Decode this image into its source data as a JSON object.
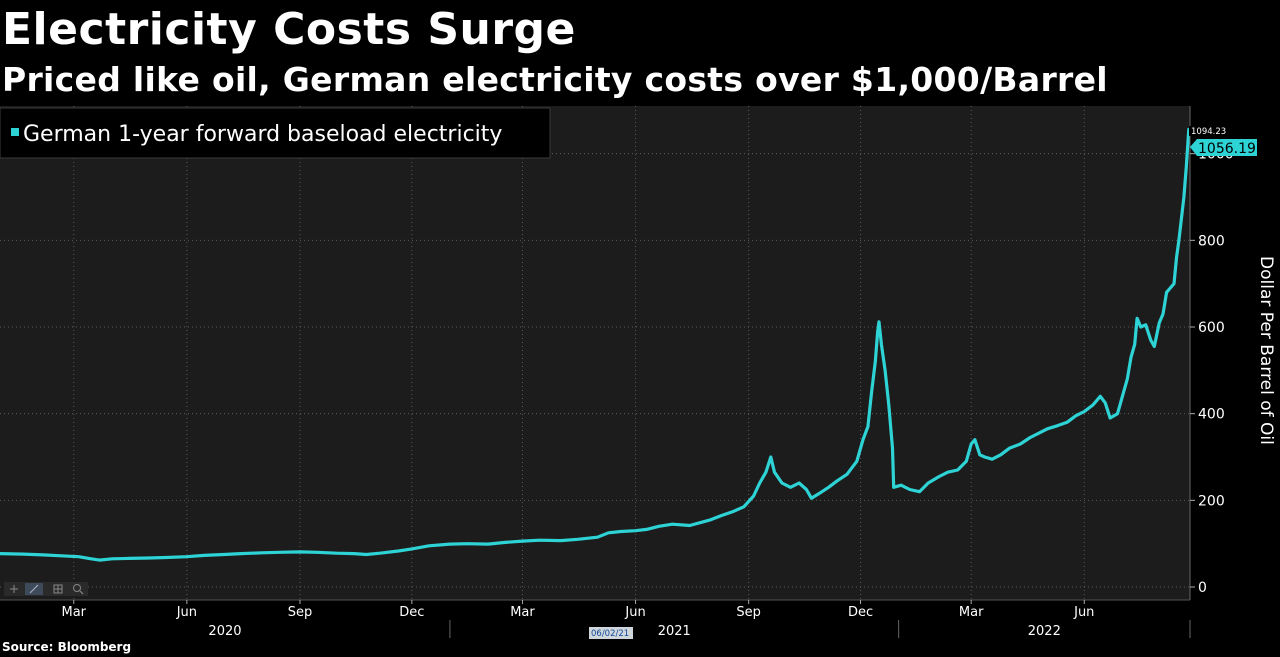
{
  "title": "Electricity Costs Surge",
  "subtitle": "Priced like oil, German electricity costs over $1,000/Barrel",
  "source": "Source: Bloomberg",
  "colors": {
    "series": "#2ed3d6",
    "background": "#000000",
    "plot": "#1c1c1c",
    "grid": "#5a5a5a",
    "text": "#ffffff"
  },
  "toolbar_icons": [
    "crosshair-icon",
    "line-tool-icon",
    "grid-icon",
    "zoom-icon"
  ],
  "chart_data": {
    "type": "line",
    "title": "Electricity Costs Surge",
    "ylabel": "Dollar Per Barrel of Oil",
    "ylim": [
      -30,
      1110
    ],
    "yticks": [
      0,
      200,
      400,
      600,
      800,
      1000
    ],
    "x_range": [
      "2020-01-01",
      "2022-08-26"
    ],
    "month_ticks": [
      {
        "label": "Mar",
        "date": "2020-03-01"
      },
      {
        "label": "Jun",
        "date": "2020-06-01"
      },
      {
        "label": "Sep",
        "date": "2020-09-01"
      },
      {
        "label": "Dec",
        "date": "2020-12-01"
      },
      {
        "label": "Mar",
        "date": "2021-03-01"
      },
      {
        "label": "Jun",
        "date": "2021-06-01"
      },
      {
        "label": "Sep",
        "date": "2021-09-01"
      },
      {
        "label": "Dec",
        "date": "2021-12-01"
      },
      {
        "label": "Mar",
        "date": "2022-03-01"
      },
      {
        "label": "Jun",
        "date": "2022-06-01"
      }
    ],
    "years": [
      {
        "label": "2020",
        "start": "2020-01-01",
        "end": "2020-12-31"
      },
      {
        "label": "2021",
        "start": "2021-01-01",
        "end": "2021-12-31"
      },
      {
        "label": "2022",
        "start": "2022-01-01",
        "end": "2022-08-26"
      }
    ],
    "cursor_date_label": "06/02/21",
    "last_value_label": "1056.19",
    "high_value_label": "1094.23",
    "series": [
      {
        "name": "German 1-year forward baseload electricity",
        "points": [
          [
            "2020-01-01",
            77
          ],
          [
            "2020-01-20",
            76
          ],
          [
            "2020-02-05",
            74
          ],
          [
            "2020-02-20",
            72
          ],
          [
            "2020-03-05",
            70
          ],
          [
            "2020-03-15",
            65
          ],
          [
            "2020-03-22",
            62
          ],
          [
            "2020-04-01",
            65
          ],
          [
            "2020-04-15",
            66
          ],
          [
            "2020-05-01",
            67
          ],
          [
            "2020-05-15",
            68
          ],
          [
            "2020-06-01",
            70
          ],
          [
            "2020-06-15",
            73
          ],
          [
            "2020-07-01",
            75
          ],
          [
            "2020-07-15",
            77
          ],
          [
            "2020-08-01",
            79
          ],
          [
            "2020-08-15",
            80
          ],
          [
            "2020-09-01",
            81
          ],
          [
            "2020-09-15",
            80
          ],
          [
            "2020-10-01",
            78
          ],
          [
            "2020-10-15",
            77
          ],
          [
            "2020-10-25",
            75
          ],
          [
            "2020-11-05",
            78
          ],
          [
            "2020-11-20",
            83
          ],
          [
            "2020-12-01",
            88
          ],
          [
            "2020-12-15",
            95
          ],
          [
            "2021-01-01",
            99
          ],
          [
            "2021-01-15",
            100
          ],
          [
            "2021-02-01",
            99
          ],
          [
            "2021-02-15",
            103
          ],
          [
            "2021-03-01",
            106
          ],
          [
            "2021-03-15",
            108
          ],
          [
            "2021-04-01",
            107
          ],
          [
            "2021-04-15",
            110
          ],
          [
            "2021-05-01",
            115
          ],
          [
            "2021-05-10",
            125
          ],
          [
            "2021-05-20",
            128
          ],
          [
            "2021-06-01",
            130
          ],
          [
            "2021-06-10",
            133
          ],
          [
            "2021-06-20",
            140
          ],
          [
            "2021-07-01",
            145
          ],
          [
            "2021-07-15",
            142
          ],
          [
            "2021-08-01",
            155
          ],
          [
            "2021-08-10",
            165
          ],
          [
            "2021-08-20",
            175
          ],
          [
            "2021-08-28",
            185
          ],
          [
            "2021-09-05",
            210
          ],
          [
            "2021-09-10",
            240
          ],
          [
            "2021-09-15",
            265
          ],
          [
            "2021-09-19",
            300
          ],
          [
            "2021-09-22",
            265
          ],
          [
            "2021-09-28",
            240
          ],
          [
            "2021-10-05",
            230
          ],
          [
            "2021-10-12",
            240
          ],
          [
            "2021-10-18",
            225
          ],
          [
            "2021-10-22",
            205
          ],
          [
            "2021-10-28",
            215
          ],
          [
            "2021-11-05",
            230
          ],
          [
            "2021-11-12",
            245
          ],
          [
            "2021-11-20",
            260
          ],
          [
            "2021-11-28",
            290
          ],
          [
            "2021-12-03",
            340
          ],
          [
            "2021-12-07",
            370
          ],
          [
            "2021-12-10",
            450
          ],
          [
            "2021-12-13",
            520
          ],
          [
            "2021-12-15",
            590
          ],
          [
            "2021-12-16",
            612
          ],
          [
            "2021-12-18",
            560
          ],
          [
            "2021-12-21",
            500
          ],
          [
            "2021-12-24",
            420
          ],
          [
            "2021-12-27",
            320
          ],
          [
            "2021-12-28",
            230
          ],
          [
            "2022-01-03",
            235
          ],
          [
            "2022-01-10",
            225
          ],
          [
            "2022-01-18",
            220
          ],
          [
            "2022-01-25",
            240
          ],
          [
            "2022-02-03",
            255
          ],
          [
            "2022-02-10",
            265
          ],
          [
            "2022-02-18",
            270
          ],
          [
            "2022-02-25",
            290
          ],
          [
            "2022-03-01",
            330
          ],
          [
            "2022-03-04",
            340
          ],
          [
            "2022-03-08",
            305
          ],
          [
            "2022-03-12",
            300
          ],
          [
            "2022-03-18",
            295
          ],
          [
            "2022-03-25",
            305
          ],
          [
            "2022-04-01",
            320
          ],
          [
            "2022-04-10",
            330
          ],
          [
            "2022-04-18",
            345
          ],
          [
            "2022-04-25",
            355
          ],
          [
            "2022-05-02",
            365
          ],
          [
            "2022-05-10",
            372
          ],
          [
            "2022-05-18",
            380
          ],
          [
            "2022-05-25",
            395
          ],
          [
            "2022-06-01",
            405
          ],
          [
            "2022-06-08",
            420
          ],
          [
            "2022-06-14",
            440
          ],
          [
            "2022-06-18",
            425
          ],
          [
            "2022-06-22",
            390
          ],
          [
            "2022-06-28",
            400
          ],
          [
            "2022-07-02",
            440
          ],
          [
            "2022-07-06",
            480
          ],
          [
            "2022-07-09",
            530
          ],
          [
            "2022-07-12",
            560
          ],
          [
            "2022-07-14",
            620
          ],
          [
            "2022-07-17",
            600
          ],
          [
            "2022-07-21",
            605
          ],
          [
            "2022-07-25",
            570
          ],
          [
            "2022-07-28",
            555
          ],
          [
            "2022-08-01",
            610
          ],
          [
            "2022-08-04",
            630
          ],
          [
            "2022-08-07",
            680
          ],
          [
            "2022-08-10",
            690
          ],
          [
            "2022-08-13",
            700
          ],
          [
            "2022-08-15",
            760
          ],
          [
            "2022-08-17",
            800
          ],
          [
            "2022-08-19",
            850
          ],
          [
            "2022-08-21",
            900
          ],
          [
            "2022-08-23",
            970
          ],
          [
            "2022-08-25",
            1056.19
          ]
        ]
      }
    ]
  }
}
